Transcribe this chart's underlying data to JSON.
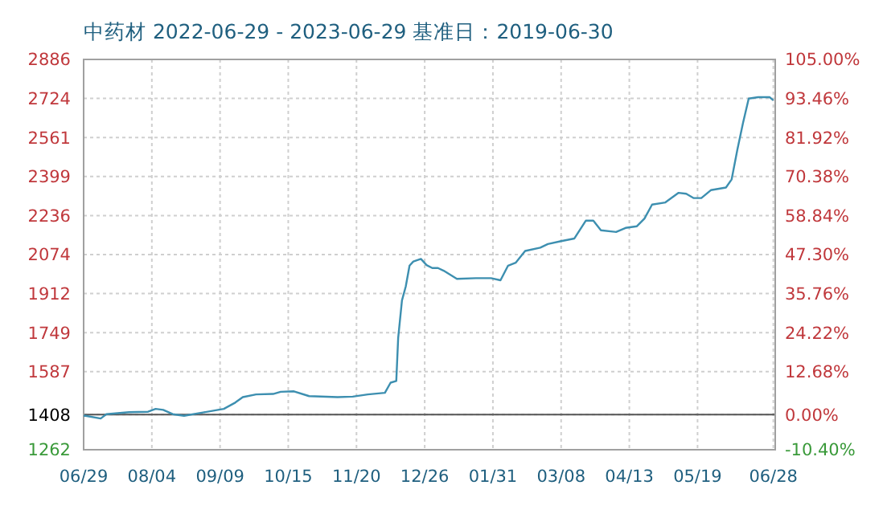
{
  "chart_data": {
    "type": "line",
    "title": "中药材 2022-06-29 - 2023-06-29    基准日：2019-06-30",
    "x": [
      "2022-06-29",
      "2022-06-30",
      "2022-07-08",
      "2022-07-11",
      "2022-07-23",
      "2022-08-02",
      "2022-08-06",
      "2022-08-10",
      "2022-08-15",
      "2022-08-21",
      "2022-08-31",
      "2022-09-11",
      "2022-09-17",
      "2022-09-21",
      "2022-09-28",
      "2022-10-07",
      "2022-10-11",
      "2022-10-18",
      "2022-10-26",
      "2022-11-10",
      "2022-11-18",
      "2022-11-26",
      "2022-12-05",
      "2022-12-08",
      "2022-12-11",
      "2022-12-12",
      "2022-12-14",
      "2022-12-16",
      "2022-12-18",
      "2022-12-20",
      "2022-12-24",
      "2022-12-27",
      "2022-12-30",
      "2023-01-02",
      "2023-01-05",
      "2023-01-12",
      "2023-01-22",
      "2023-01-30",
      "2023-02-04",
      "2023-02-08",
      "2023-02-12",
      "2023-02-17",
      "2023-02-25",
      "2023-03-01",
      "2023-03-08",
      "2023-03-15",
      "2023-03-21",
      "2023-03-25",
      "2023-03-29",
      "2023-04-06",
      "2023-04-11",
      "2023-04-17",
      "2023-04-21",
      "2023-04-25",
      "2023-05-02",
      "2023-05-09",
      "2023-05-13",
      "2023-05-17",
      "2023-05-21",
      "2023-05-26",
      "2023-06-03",
      "2023-06-06",
      "2023-06-09",
      "2023-06-12",
      "2023-06-15",
      "2023-06-20",
      "2023-06-26",
      "2023-06-28"
    ],
    "series": [
      {
        "color": "#3d8fb0",
        "values": [
          1403,
          1403,
          1392,
          1410,
          1418,
          1420,
          1432,
          1428,
          1410,
          1403,
          1417,
          1432,
          1458,
          1481,
          1492,
          1494,
          1503,
          1505,
          1485,
          1481,
          1483,
          1492,
          1499,
          1541,
          1548,
          1727,
          1883,
          1941,
          2028,
          2045,
          2056,
          2030,
          2018,
          2018,
          2007,
          1973,
          1976,
          1976,
          1967,
          2028,
          2040,
          2089,
          2103,
          2118,
          2130,
          2141,
          2215,
          2215,
          2175,
          2168,
          2185,
          2192,
          2224,
          2282,
          2291,
          2331,
          2327,
          2309,
          2309,
          2342,
          2353,
          2387,
          2510,
          2622,
          2723,
          2729,
          2729,
          2716
        ]
      }
    ],
    "xlim": [
      "2022-06-29",
      "2023-06-29"
    ],
    "xticks": [
      {
        "value": "2022-06-29",
        "label": "06/29"
      },
      {
        "value": "2022-08-04",
        "label": "08/04"
      },
      {
        "value": "2022-09-09",
        "label": "09/09"
      },
      {
        "value": "2022-10-15",
        "label": "10/15"
      },
      {
        "value": "2022-11-20",
        "label": "11/20"
      },
      {
        "value": "2022-12-26",
        "label": "12/26"
      },
      {
        "value": "2023-01-31",
        "label": "01/31"
      },
      {
        "value": "2023-03-08",
        "label": "03/08"
      },
      {
        "value": "2023-04-13",
        "label": "04/13"
      },
      {
        "value": "2023-05-19",
        "label": "05/19"
      },
      {
        "value": "2023-06-28",
        "label": "06/28"
      }
    ],
    "ylim": [
      1262,
      2886
    ],
    "yticks": [
      1262,
      1408,
      1587,
      1749,
      1912,
      2074,
      2236,
      2399,
      2561,
      2724,
      2886
    ],
    "y2lim": [
      -10.4,
      105
    ],
    "y2ticks": [
      {
        "value": -10.4,
        "label": "-10.40%"
      },
      {
        "value": 0,
        "label": "0.00%"
      },
      {
        "value": 12.68,
        "label": "12.68%"
      },
      {
        "value": 24.22,
        "label": "24.22%"
      },
      {
        "value": 35.76,
        "label": "35.76%"
      },
      {
        "value": 47.3,
        "label": "47.30%"
      },
      {
        "value": 58.84,
        "label": "58.84%"
      },
      {
        "value": 70.38,
        "label": "70.38%"
      },
      {
        "value": 81.92,
        "label": "81.92%"
      },
      {
        "value": 93.46,
        "label": "93.46%"
      },
      {
        "value": 105,
        "label": "105.00%"
      }
    ],
    "ref_lines": [
      {
        "axis": "y",
        "value": 1408,
        "color": "#555555"
      }
    ],
    "grid": true,
    "line_style": "solid",
    "marker": "none"
  }
}
